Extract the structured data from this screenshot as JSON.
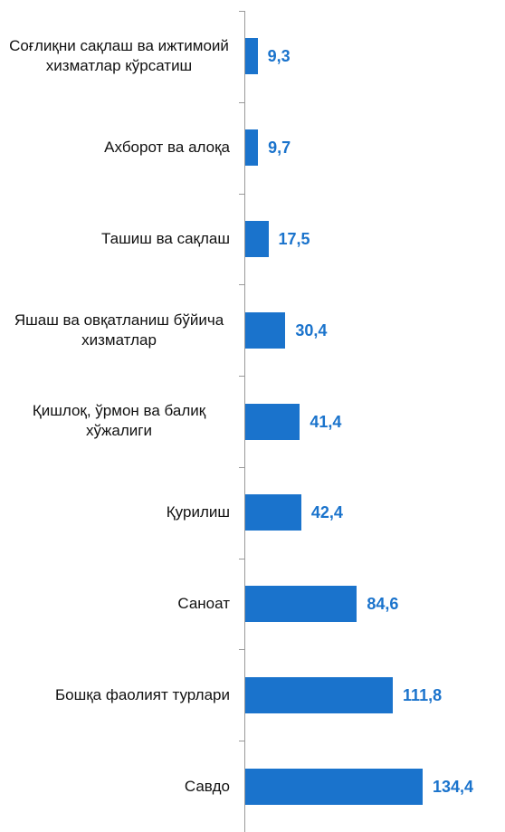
{
  "chart_data": {
    "type": "bar",
    "orientation": "horizontal",
    "categories": [
      "Соғлиқни сақлаш ва ижтимоий хизматлар кўрсатиш",
      "Ахборот ва алоқа",
      "Ташиш ва сақлаш",
      "Яшаш ва овқатланиш бўйича хизматлар",
      "Қишлоқ, ўрмон ва балиқ хўжалиги",
      "Қурилиш",
      "Саноат",
      "Бошқа фаолият турлари",
      "Савдо"
    ],
    "values": [
      9.3,
      9.7,
      17.5,
      30.4,
      41.4,
      42.4,
      84.6,
      111.8,
      134.4
    ],
    "value_labels": [
      "9,3",
      "9,7",
      "17,5",
      "30,4",
      "41,4",
      "42,4",
      "84,6",
      "111,8",
      "134,4"
    ],
    "color": "#1a73cc"
  }
}
